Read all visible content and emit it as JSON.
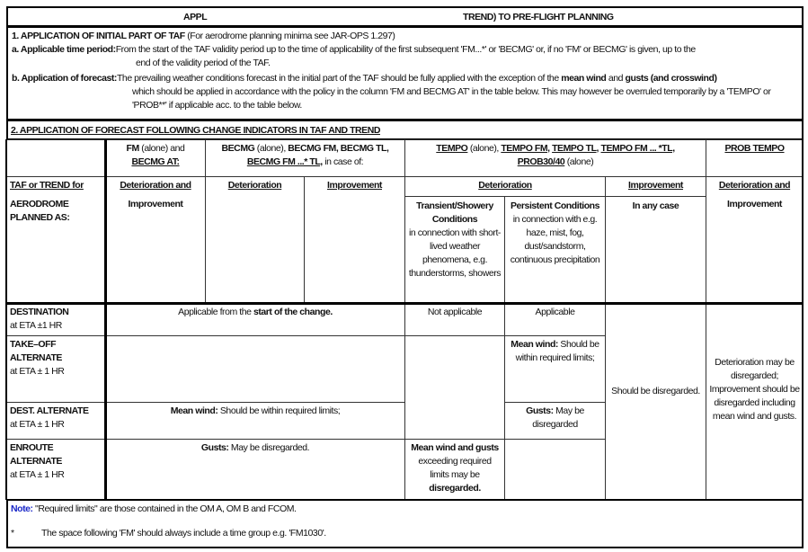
{
  "title": {
    "left": "APPL",
    "right": "TREND) TO PRE-FLIGHT PLANNING"
  },
  "section1": {
    "heading": "1. APPLICATION OF INITIAL PART OF TAF",
    "heading_note": " (For aerodrome planning minima see JAR-OPS 1.297)",
    "a_label": "a. Applicable time period:",
    "a_text": "From the start of the TAF validity period up to the time of applicability of the first subsequent 'FM...*' or 'BECMG' or, if no 'FM' or BECMG' is given, up to the",
    "a_text2": "end of the validity period of the TAF.",
    "b_label": "b. Application of forecast:",
    "b_text1": "The prevailing weather conditions forecast in the initial part of the TAF should be fully applied with the exception of the ",
    "b_bold1": "mean wind",
    "b_and": " and ",
    "b_bold2": "gusts (and crosswind)",
    "b_text2": "which should be applied in accordance with the policy in the column 'FM and BECMG AT' in the table below. This may however be overruled temporarily by a 'TEMPO' or 'PROB**' if applicable acc. to the table below."
  },
  "section2": {
    "heading": "2. APPLICATION OF FORECAST FOLLOWING CHANGE INDICATORS IN TAF AND TREND"
  },
  "headers": {
    "fm_1": "FM",
    "fm_2": " (alone) and",
    "fm_3": "BECMG AT:",
    "becmg_1": "BECMG",
    "becmg_2": " (alone), ",
    "becmg_3": "BECMG FM, BECMG TL,",
    "becmg_4": "BECMG FM ...* TL,",
    "becmg_5": " in case of:",
    "tempo_1": "TEMPO",
    "tempo_2": " (alone), ",
    "tempo_3": "TEMPO FM,",
    "tempo_4": "TEMPO TL,",
    "tempo_5": "TEMPO FM ... *TL,",
    "tempo_6": "PROB30/40",
    "tempo_7": " (alone)",
    "prob": "PROB TEMPO",
    "taf_trend": "TAF or TREND for",
    "aerodrome": "AERODROME PLANNED AS:",
    "det_imp": "Deterioration and",
    "improvement_word": "Improvement",
    "deterioration": "Deterioration",
    "improvement": "Improvement",
    "transient_title": "Transient/Showery Conditions",
    "transient_text": "in connection with short-lived weather phenomena, e.g. thunderstorms, showers",
    "persistent_title": "Persistent Conditions",
    "persistent_text": "in connection with e.g. haze, mist, fog, dust/sandstorm, continuous precipitation",
    "in_any_case": "In any case"
  },
  "rows": {
    "destination": {
      "name": "DESTINATION",
      "eta": "at ETA ±1 HR",
      "fm_becmg_1": "Applicable from the ",
      "fm_becmg_2": "start of the change.",
      "transient": "Not applicable",
      "persistent": "Applicable"
    },
    "takeoff": {
      "name": "TAKE–OFF ALTERNATE",
      "eta": "at ETA ± 1 HR",
      "persistent_b": "Mean wind:",
      "persistent": " Should be within required limits;"
    },
    "dest_alt": {
      "name": "DEST. ALTERNATE",
      "eta": "at ETA ± 1 HR",
      "fm_becmg_b": "Mean wind:",
      "fm_becmg": " Should be within required limits;",
      "persistent_b": "Gusts:",
      "persistent": " May be disregarded"
    },
    "enroute": {
      "name": "ENROUTE ALTERNATE",
      "eta": "at ETA ± 1 HR",
      "fm_becmg_b": "Gusts:",
      "fm_becmg": " May be disregarded.",
      "transient_b1": "Mean wind and gusts",
      "transient": " exceeding required limits may be ",
      "transient_b2": "disregarded."
    },
    "improvement_all": "Should be disregarded.",
    "prob_all": "Deterioration may be disregarded; Improvement should be disregarded including mean wind and gusts."
  },
  "notes": {
    "label": "Note:",
    "text": " \"Required limits\" are those contained in the OM A, OM B and FCOM.",
    "star": "*",
    "star_text": "The space following 'FM' should always include a time group e.g. 'FM1030'."
  },
  "colors": {
    "note_label": "#1a28c8"
  }
}
